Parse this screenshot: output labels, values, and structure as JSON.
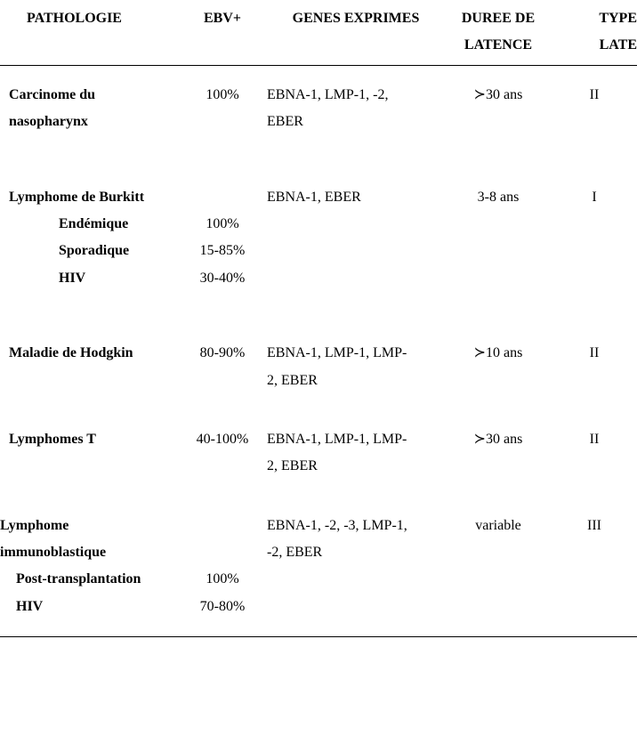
{
  "columns": {
    "pathologie": "PATHOLOGIE",
    "ebv": "EBV+",
    "genes": "GENES EXPRIMES",
    "duree1": "DUREE DE",
    "duree2": "LATENCE",
    "type1": "TYPE",
    "type2": "LATE"
  },
  "rows": {
    "r1": {
      "path1": "Carcinome du",
      "path2": "nasopharynx",
      "ebv": "100%",
      "genes1": "EBNA-1, LMP-1, -2,",
      "genes2": "EBER",
      "duree": "≻30 ans",
      "type": "II"
    },
    "r2": {
      "path": "Lymphome de Burkitt",
      "genes": "EBNA-1, EBER",
      "duree": "3-8 ans",
      "type": "I",
      "sub1": {
        "label": "Endémique",
        "ebv": "100%"
      },
      "sub2": {
        "label": "Sporadique",
        "ebv": "15-85%"
      },
      "sub3": {
        "label": "HIV",
        "ebv": "30-40%"
      }
    },
    "r3": {
      "path": "Maladie de Hodgkin",
      "ebv": "80-90%",
      "genes1": "EBNA-1, LMP-1, LMP-",
      "genes2": "2, EBER",
      "duree": "≻10 ans",
      "type": "II"
    },
    "r4": {
      "path": "Lymphomes T",
      "ebv": "40-100%",
      "genes1": "EBNA-1, LMP-1, LMP-",
      "genes2": "2, EBER",
      "duree": "≻30 ans",
      "type": "II"
    },
    "r5": {
      "path1": "Lymphome",
      "path2": "immunoblastique",
      "genes1": "EBNA-1, -2, -3, LMP-1,",
      "genes2": "-2, EBER",
      "duree": "variable",
      "type": "III",
      "sub1": {
        "label": "Post-transplantation",
        "ebv": "100%"
      },
      "sub2": {
        "label": "HIV",
        "ebv": "70-80%"
      }
    }
  }
}
